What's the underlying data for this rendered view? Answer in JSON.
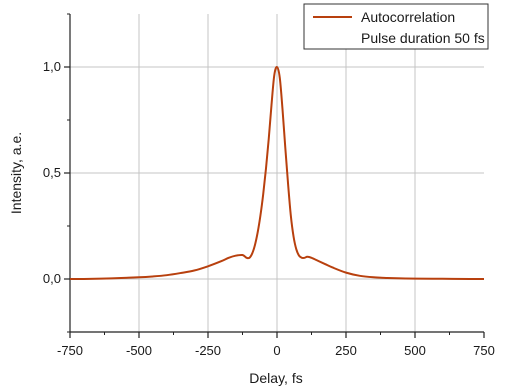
{
  "chart_data": {
    "type": "line",
    "xlabel": "Delay, fs",
    "ylabel": "Intensity, a.e.",
    "xlim": [
      -750,
      750
    ],
    "ylim": [
      -0.25,
      1.25
    ],
    "x_ticks": [
      -750,
      -500,
      -250,
      0,
      250,
      500,
      750
    ],
    "x_tick_labels": [
      "-750",
      "-500",
      "-250",
      "0",
      "250",
      "500",
      "750"
    ],
    "y_ticks": [
      0.0,
      0.5,
      1.0
    ],
    "y_tick_labels": [
      "0,0",
      "0,5",
      "1,0"
    ],
    "grid": true,
    "legend_position": "top-right",
    "legend": [
      "Autocorrelation",
      "Pulse duration 50 fs"
    ],
    "series": [
      {
        "name": "Autocorrelation",
        "color": "#b8400e",
        "x": [
          -750,
          -700,
          -600,
          -500,
          -450,
          -400,
          -350,
          -300,
          -250,
          -200,
          -175,
          -150,
          -125,
          -110,
          -100,
          -90,
          -80,
          -70,
          -60,
          -50,
          -40,
          -30,
          -20,
          -10,
          0,
          10,
          20,
          30,
          40,
          50,
          60,
          70,
          80,
          90,
          100,
          110,
          125,
          150,
          175,
          200,
          250,
          300,
          350,
          400,
          450,
          500,
          600,
          700,
          750
        ],
        "y": [
          0.0,
          0.0,
          0.003,
          0.008,
          0.012,
          0.018,
          0.028,
          0.04,
          0.06,
          0.085,
          0.1,
          0.11,
          0.113,
          0.1,
          0.1,
          0.12,
          0.16,
          0.22,
          0.3,
          0.4,
          0.52,
          0.66,
          0.82,
          0.96,
          1.0,
          0.95,
          0.8,
          0.62,
          0.45,
          0.3,
          0.2,
          0.14,
          0.11,
          0.1,
          0.1,
          0.105,
          0.1,
          0.085,
          0.07,
          0.055,
          0.03,
          0.015,
          0.008,
          0.005,
          0.003,
          0.002,
          0.001,
          0.0,
          0.0
        ]
      }
    ]
  }
}
